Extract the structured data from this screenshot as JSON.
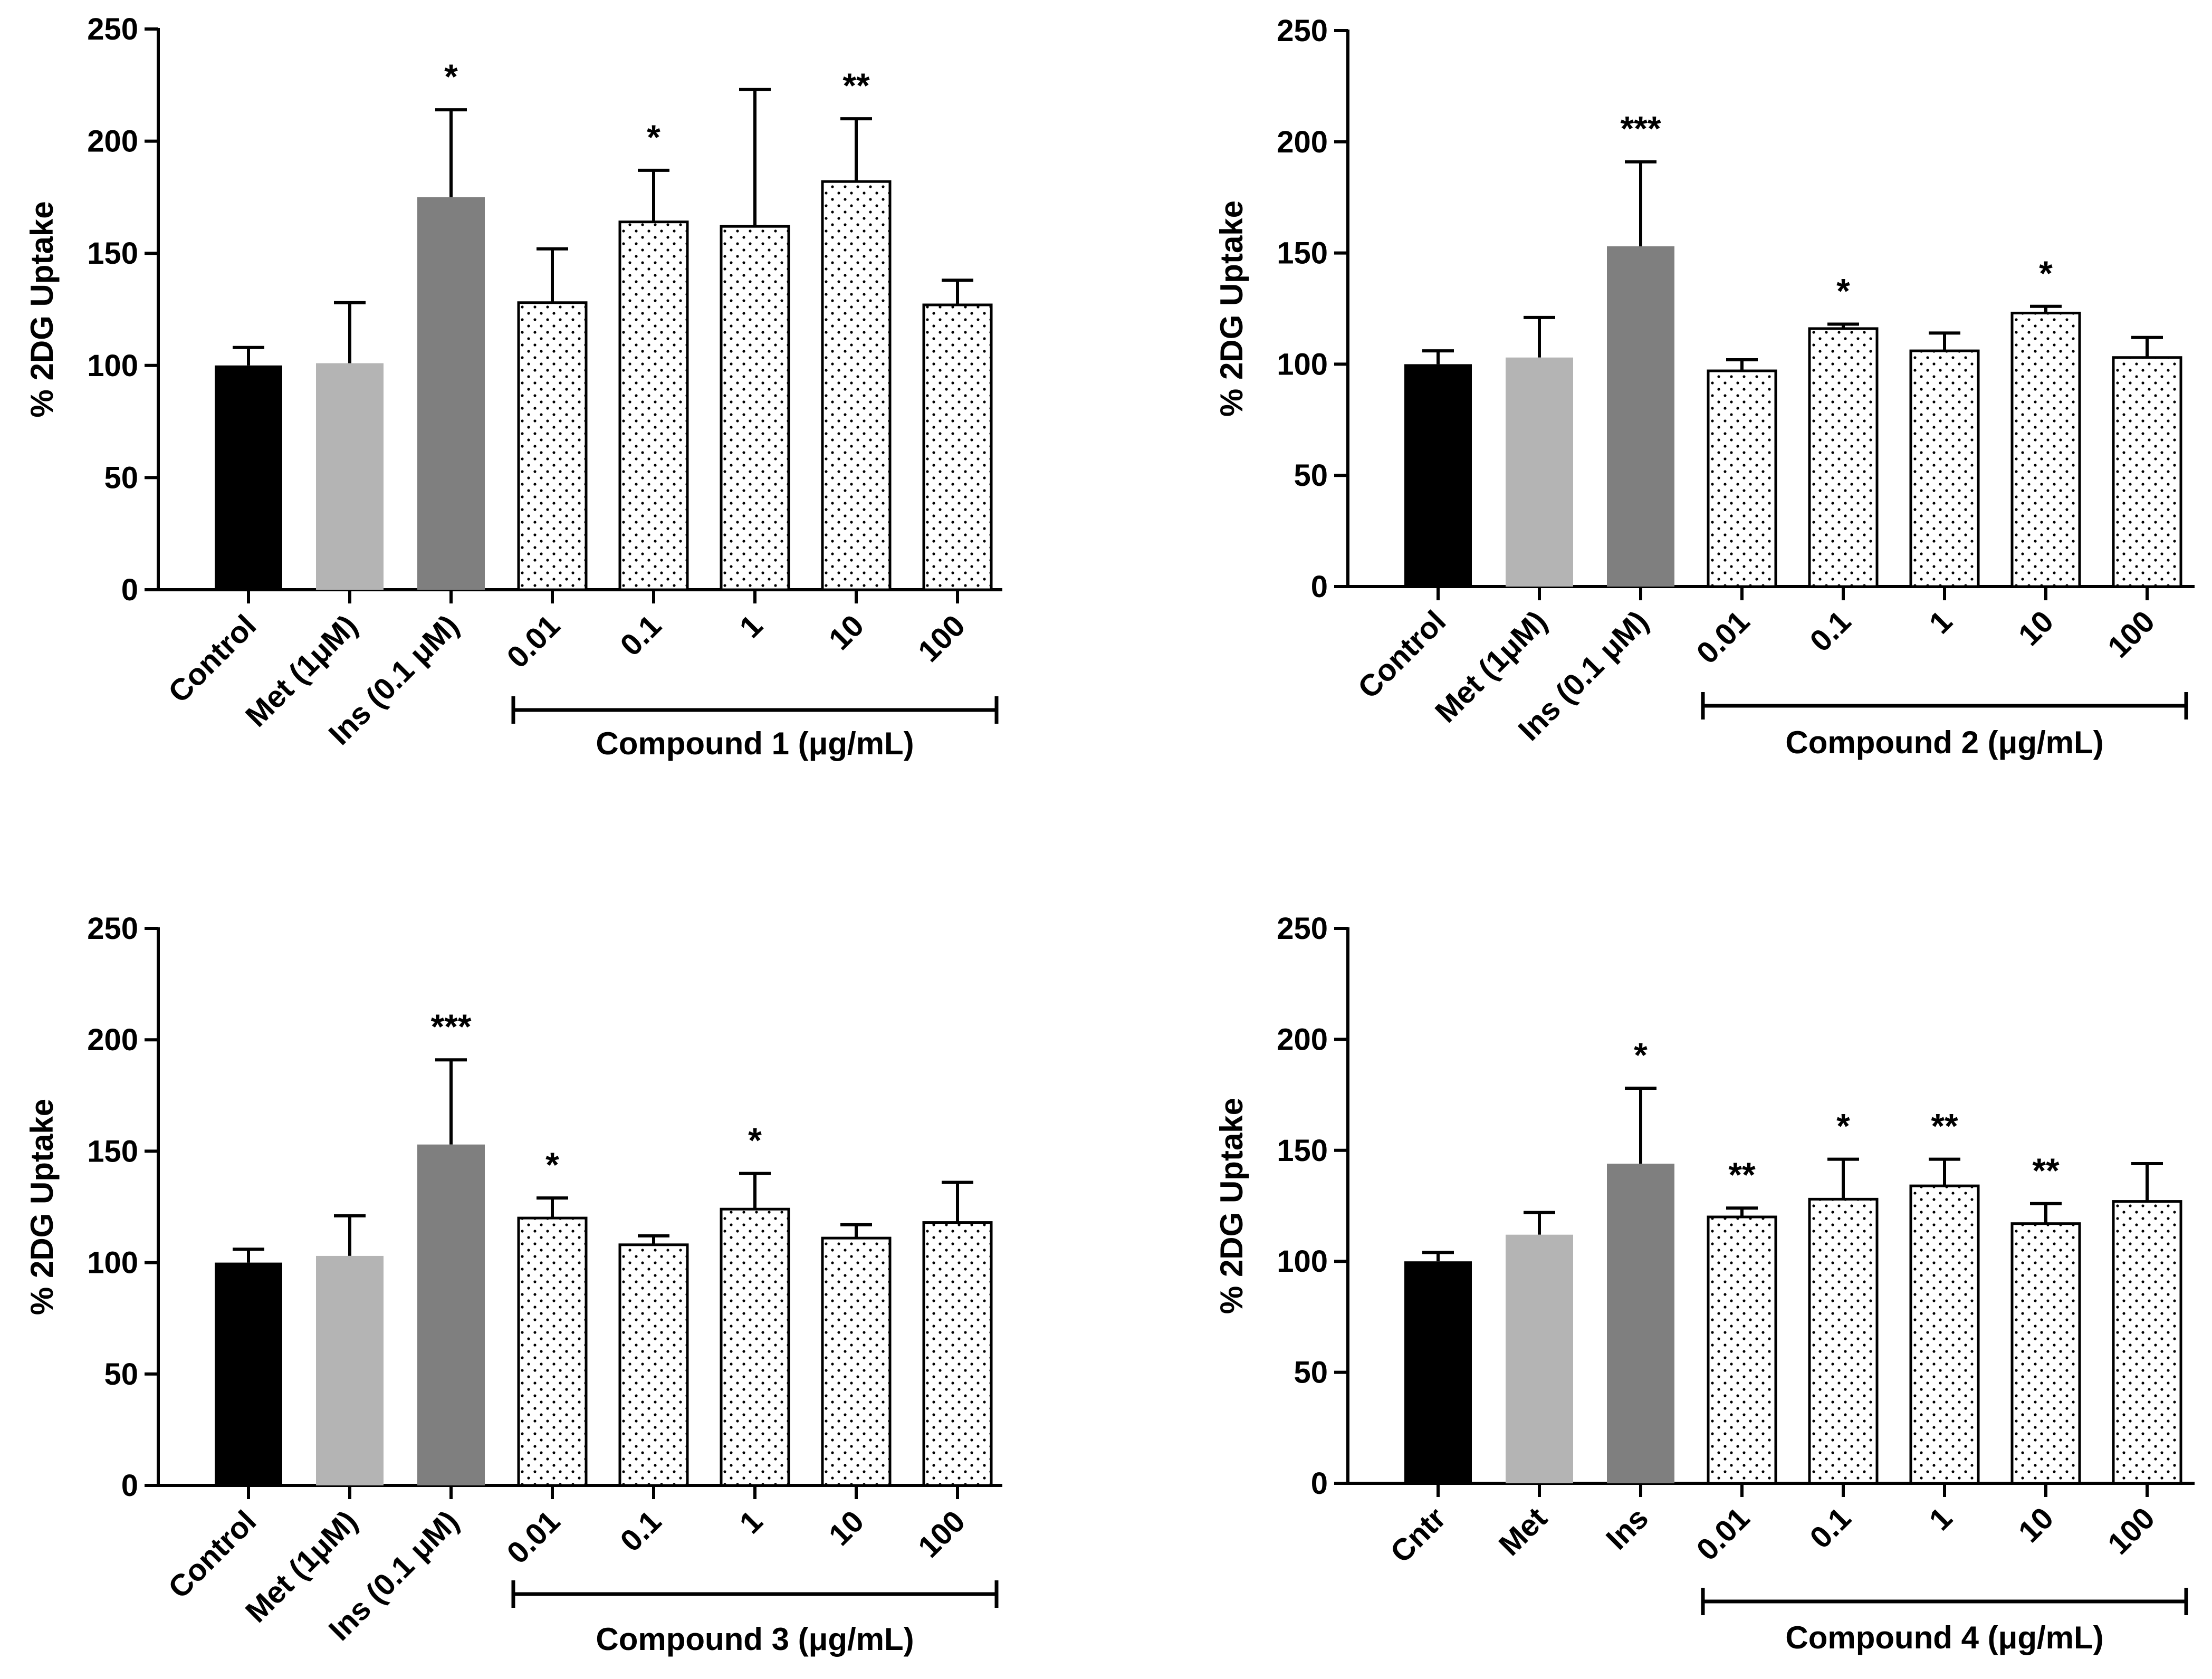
{
  "colors": {
    "control": "#000000",
    "met": "#b4b4b4",
    "ins": "#7f7f7f",
    "dotted_fill": "#ffffff",
    "dot": "#000000",
    "axis": "#000000"
  },
  "chart_data": [
    {
      "type": "bar",
      "panel": "compound-1",
      "ylabel": "% 2DG Uptake",
      "ylim": [
        0,
        250
      ],
      "yticks": [
        0,
        50,
        100,
        150,
        200,
        250
      ],
      "categories": [
        "Control",
        "Met (1μM)",
        "Ins (0.1 μM)",
        "0.01",
        "0.1",
        "1",
        "10",
        "100"
      ],
      "styles": [
        "control",
        "met",
        "ins",
        "dotted",
        "dotted",
        "dotted",
        "dotted",
        "dotted"
      ],
      "values": [
        100,
        101,
        175,
        128,
        164,
        162,
        182,
        127
      ],
      "errors": [
        8,
        27,
        39,
        24,
        23,
        61,
        28,
        11
      ],
      "significance": [
        "",
        "",
        "*",
        "",
        "*",
        "",
        "**",
        ""
      ],
      "group": {
        "label": "Compound 1 (μg/mL)",
        "from_index": 3,
        "to_index": 7
      }
    },
    {
      "type": "bar",
      "panel": "compound-2",
      "ylabel": "% 2DG Uptake",
      "ylim": [
        0,
        250
      ],
      "yticks": [
        0,
        50,
        100,
        150,
        200,
        250
      ],
      "categories": [
        "Control",
        "Met (1μM)",
        "Ins (0.1 μM)",
        "0.01",
        "0.1",
        "1",
        "10",
        "100"
      ],
      "styles": [
        "control",
        "met",
        "ins",
        "dotted",
        "dotted",
        "dotted",
        "dotted",
        "dotted"
      ],
      "values": [
        100,
        103,
        153,
        97,
        116,
        106,
        123,
        103
      ],
      "errors": [
        6,
        18,
        38,
        5,
        2,
        8,
        3,
        9
      ],
      "significance": [
        "",
        "",
        "***",
        "",
        "*",
        "",
        "*",
        ""
      ],
      "group": {
        "label": "Compound 2 (μg/mL)",
        "from_index": 3,
        "to_index": 7
      }
    },
    {
      "type": "bar",
      "panel": "compound-3",
      "ylabel": "% 2DG Uptake",
      "ylim": [
        0,
        250
      ],
      "yticks": [
        0,
        50,
        100,
        150,
        200,
        250
      ],
      "categories": [
        "Control",
        "Met (1μM)",
        "Ins (0.1 μM)",
        "0.01",
        "0.1",
        "1",
        "10",
        "100"
      ],
      "styles": [
        "control",
        "met",
        "ins",
        "dotted",
        "dotted",
        "dotted",
        "dotted",
        "dotted"
      ],
      "values": [
        100,
        103,
        153,
        120,
        108,
        124,
        111,
        118
      ],
      "errors": [
        6,
        18,
        38,
        9,
        4,
        16,
        6,
        18
      ],
      "significance": [
        "",
        "",
        "***",
        "*",
        "",
        "*",
        "",
        ""
      ],
      "group": {
        "label": "Compound 3 (μg/mL)",
        "from_index": 3,
        "to_index": 7
      }
    },
    {
      "type": "bar",
      "panel": "compound-4",
      "ylabel": "% 2DG Uptake",
      "ylim": [
        0,
        250
      ],
      "yticks": [
        0,
        50,
        100,
        150,
        200,
        250
      ],
      "categories": [
        "Cntr",
        "Met",
        "Ins",
        "0.01",
        "0.1",
        "1",
        "10",
        "100"
      ],
      "styles": [
        "control",
        "met",
        "ins",
        "dotted",
        "dotted",
        "dotted",
        "dotted",
        "dotted"
      ],
      "values": [
        100,
        112,
        144,
        120,
        128,
        134,
        117,
        127
      ],
      "errors": [
        4,
        10,
        34,
        4,
        18,
        12,
        9,
        17
      ],
      "significance": [
        "",
        "",
        "*",
        "**",
        "*",
        "**",
        "**",
        ""
      ],
      "group": {
        "label": "Compound 4 (μg/mL)",
        "from_index": 3,
        "to_index": 7
      }
    }
  ]
}
